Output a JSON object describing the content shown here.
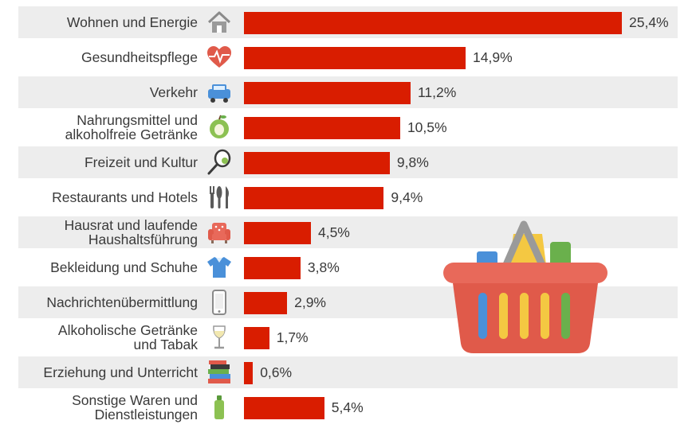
{
  "chart_data": {
    "type": "bar",
    "orientation": "horizontal",
    "unit": "%",
    "categories": [
      "Wohnen und Energie",
      "Gesundheitspflege",
      "Verkehr",
      "Nahrungsmittel und\nalkoholfreie Getränke",
      "Freizeit und Kultur",
      "Restaurants und Hotels",
      "Hausrat und laufende\nHaushaltsführung",
      "Bekleidung und Schuhe",
      "Nachrichtenübermittlung",
      "Alkoholische Getränke\nund Tabak",
      "Erziehung und Unterricht",
      "Sonstige Waren und\nDienstleistungen"
    ],
    "values": [
      25.4,
      14.9,
      11.2,
      10.5,
      9.8,
      9.4,
      4.5,
      3.8,
      2.9,
      1.7,
      0.6,
      5.4
    ],
    "value_labels": [
      "25,4%",
      "14,9%",
      "11,2%",
      "10,5%",
      "9,8%",
      "9,4%",
      "4,5%",
      "3,8%",
      "2,9%",
      "1,7%",
      "0,6%",
      "5,4%"
    ],
    "icons": [
      "house-icon",
      "heart-pulse-icon",
      "car-icon",
      "apple-icon",
      "tennis-racket-icon",
      "cutlery-icon",
      "armchair-icon",
      "shirt-icon",
      "smartphone-icon",
      "wine-glass-icon",
      "books-icon",
      "bottle-icon"
    ],
    "xlim": [
      0,
      25.4
    ],
    "bar_color": "#d91d00",
    "row_shade_color": "#ededed",
    "decoration": "shopping-basket-icon"
  }
}
